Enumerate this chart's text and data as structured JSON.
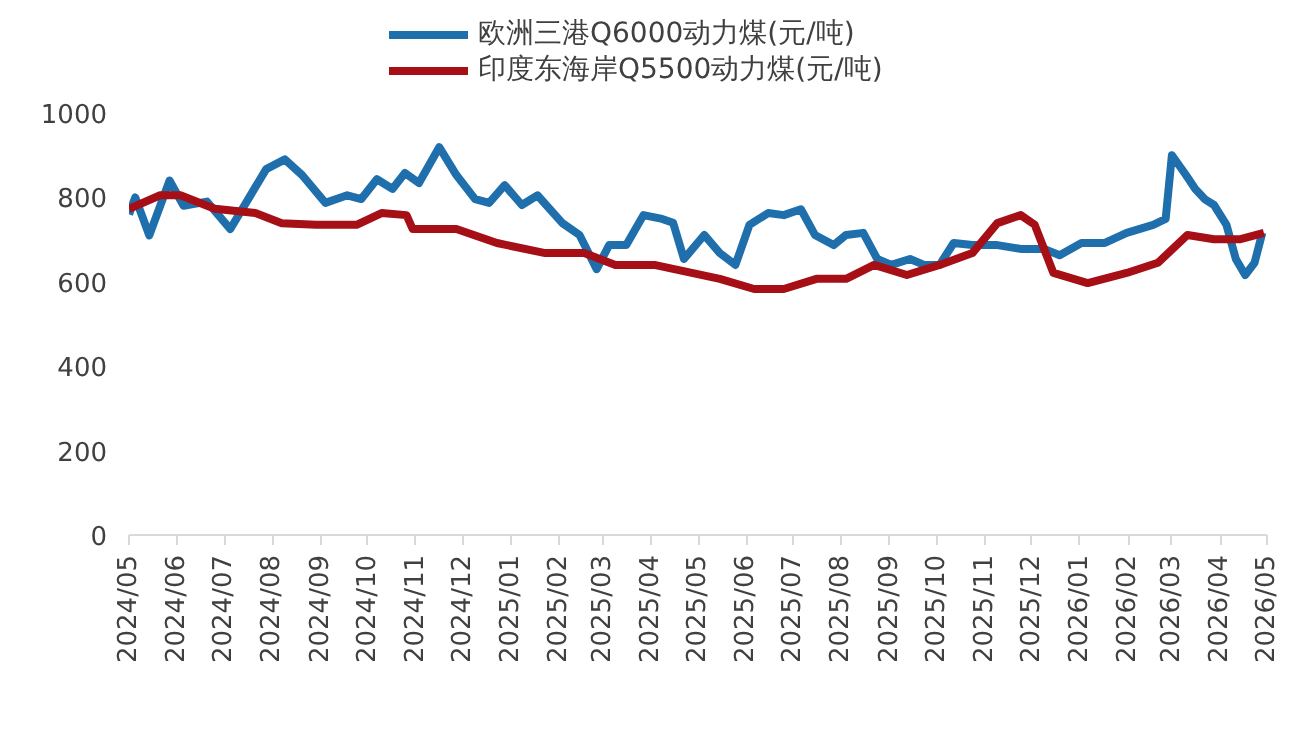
{
  "chart_data": {
    "type": "line",
    "legend": "top",
    "grid": false,
    "marker": "none",
    "line_style": "solid",
    "xlim": [
      "2024-05-01",
      "2026-05-01"
    ],
    "xticks": [
      {
        "value": "2024-05-01",
        "label": "2024/05"
      },
      {
        "value": "2024-06-01",
        "label": "2024/06"
      },
      {
        "value": "2024-07-01",
        "label": "2024/07"
      },
      {
        "value": "2024-08-01",
        "label": "2024/08"
      },
      {
        "value": "2024-09-01",
        "label": "2024/09"
      },
      {
        "value": "2024-10-01",
        "label": "2024/10"
      },
      {
        "value": "2024-11-01",
        "label": "2024/11"
      },
      {
        "value": "2024-12-01",
        "label": "2024/12"
      },
      {
        "value": "2025-01-01",
        "label": "2025/01"
      },
      {
        "value": "2025-02-01",
        "label": "2025/02"
      },
      {
        "value": "2025-03-01",
        "label": "2025/03"
      },
      {
        "value": "2025-04-01",
        "label": "2025/04"
      },
      {
        "value": "2025-05-01",
        "label": "2025/05"
      },
      {
        "value": "2025-06-01",
        "label": "2025/06"
      },
      {
        "value": "2025-07-01",
        "label": "2025/07"
      },
      {
        "value": "2025-08-01",
        "label": "2025/08"
      },
      {
        "value": "2025-09-01",
        "label": "2025/09"
      },
      {
        "value": "2025-10-01",
        "label": "2025/10"
      },
      {
        "value": "2025-11-01",
        "label": "2025/11"
      },
      {
        "value": "2025-12-01",
        "label": "2025/12"
      },
      {
        "value": "2026-01-01",
        "label": "2026/01"
      },
      {
        "value": "2026-02-01",
        "label": "2026/02"
      },
      {
        "value": "2026-03-01",
        "label": "2026/03"
      },
      {
        "value": "2026-04-01",
        "label": "2026/04"
      },
      {
        "value": "2026-05-01",
        "label": "2026/05"
      }
    ],
    "ylim": [
      0,
      1000
    ],
    "yticks": [
      0,
      200,
      400,
      600,
      800,
      1000
    ],
    "series": [
      {
        "name": "欧洲三港Q6000动力煤(元/吨)",
        "color": "#1f6fad",
        "x": [
          "2024-05-01",
          "2024-05-05",
          "2024-05-14",
          "2024-05-27",
          "2024-06-05",
          "2024-06-20",
          "2024-07-05",
          "2024-07-28",
          "2024-08-09",
          "2024-08-20",
          "2024-09-04",
          "2024-09-18",
          "2024-09-27",
          "2024-10-07",
          "2024-10-17",
          "2024-10-25",
          "2024-11-03",
          "2024-11-16",
          "2024-11-27",
          "2024-12-09",
          "2024-12-18",
          "2024-12-28",
          "2025-01-08",
          "2025-01-18",
          "2025-02-03",
          "2025-02-14",
          "2025-02-25",
          "2025-03-05",
          "2025-03-16",
          "2025-03-27",
          "2025-04-08",
          "2025-04-15",
          "2025-04-22",
          "2025-05-05",
          "2025-05-15",
          "2025-05-25",
          "2025-06-03",
          "2025-06-15",
          "2025-06-25",
          "2025-07-06",
          "2025-07-15",
          "2025-07-27",
          "2025-08-04",
          "2025-08-15",
          "2025-08-24",
          "2025-09-02",
          "2025-09-14",
          "2025-09-23",
          "2025-10-03",
          "2025-10-12",
          "2025-10-24",
          "2025-11-09",
          "2025-11-24",
          "2025-12-09",
          "2025-12-19",
          "2026-01-02",
          "2026-01-17",
          "2026-01-31",
          "2026-02-17",
          "2026-02-25",
          "2026-03-01",
          "2026-03-10",
          "2026-03-16",
          "2026-03-22",
          "2026-03-28",
          "2026-04-05",
          "2026-04-11",
          "2026-04-17",
          "2026-04-23",
          "2026-04-28"
        ],
        "values": [
          760,
          800,
          710,
          840,
          780,
          790,
          725,
          867,
          890,
          853,
          787,
          805,
          796,
          843,
          820,
          858,
          834,
          919,
          853,
          796,
          787,
          829,
          782,
          805,
          739,
          711,
          630,
          687,
          687,
          758,
          749,
          740,
          654,
          711,
          668,
          640,
          735,
          763,
          758,
          772,
          711,
          687,
          711,
          716,
          654,
          640,
          654,
          640,
          640,
          692,
          687,
          687,
          678,
          678,
          663,
          692,
          692,
          716,
          735,
          749,
          900,
          853,
          820,
          796,
          782,
          735,
          654,
          616,
          645,
          716
        ]
      },
      {
        "name": "印度东海岸Q5500动力煤(元/吨)",
        "color": "#a50f15",
        "x": [
          "2024-05-01",
          "2024-05-21",
          "2024-06-03",
          "2024-06-25",
          "2024-07-21",
          "2024-08-07",
          "2024-08-29",
          "2024-09-24",
          "2024-10-10",
          "2024-10-26",
          "2024-10-30",
          "2024-11-27",
          "2024-12-23",
          "2025-01-23",
          "2025-02-17",
          "2025-03-09",
          "2025-04-03",
          "2025-05-15",
          "2025-06-06",
          "2025-06-25",
          "2025-07-16",
          "2025-08-04",
          "2025-08-22",
          "2025-09-12",
          "2025-10-03",
          "2025-10-24",
          "2025-11-09",
          "2025-11-24",
          "2025-12-03",
          "2025-12-15",
          "2026-01-06",
          "2026-01-31",
          "2026-02-20",
          "2026-03-11",
          "2026-03-28",
          "2026-04-14",
          "2026-04-29"
        ],
        "values": [
          773,
          805,
          805,
          773,
          763,
          739,
          735,
          735,
          763,
          758,
          725,
          725,
          692,
          668,
          668,
          640,
          640,
          607,
          583,
          583,
          607,
          607,
          640,
          616,
          640,
          668,
          739,
          758,
          735,
          621,
          597,
          621,
          645,
          711,
          701,
          701,
          716
        ]
      }
    ]
  }
}
